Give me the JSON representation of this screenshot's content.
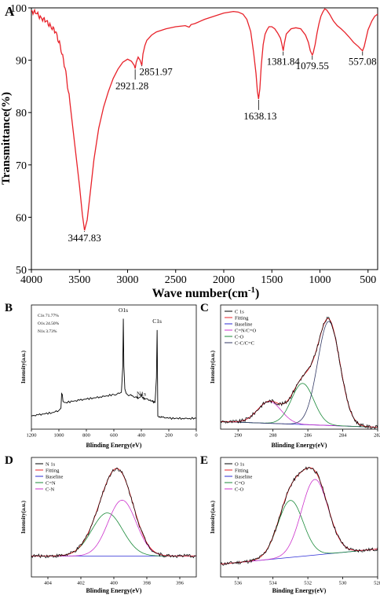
{
  "chart_data": [
    {
      "panel": "A",
      "type": "line",
      "xlabel": "Wave number(cm",
      "xlabel_sup": "-1",
      "xlabel_close": ")",
      "ylabel": "Transmittance(%)",
      "xlim": [
        4000,
        400
      ],
      "ylim": [
        50,
        100
      ],
      "x_reversed": true,
      "xticks": [
        4000,
        3500,
        3000,
        2500,
        2000,
        1500,
        1000,
        500
      ],
      "yticks": [
        50,
        60,
        70,
        80,
        90,
        100
      ],
      "series_color": "#e8222a",
      "series": [
        {
          "x": [
            4000,
            3950,
            3900,
            3850,
            3800,
            3750,
            3700,
            3650,
            3600,
            3550,
            3500,
            3470,
            3447.83,
            3420,
            3380,
            3350,
            3300,
            3250,
            3200,
            3150,
            3100,
            3050,
            3000,
            2960,
            2930,
            2921.28,
            2910,
            2890,
            2870,
            2851.97,
            2840,
            2820,
            2800,
            2750,
            2700,
            2600,
            2500,
            2400,
            2360,
            2340,
            2300,
            2200,
            2100,
            2000,
            1900,
            1850,
            1800,
            1760,
            1720,
            1690,
            1665,
            1650,
            1638.13,
            1625,
            1610,
            1590,
            1570,
            1550,
            1530,
            1500,
            1470,
            1440,
            1410,
            1395,
            1381.84,
            1370,
            1350,
            1300,
            1250,
            1200,
            1150,
            1120,
            1100,
            1085,
            1079.55,
            1070,
            1050,
            1030,
            1010,
            990,
            970,
            950,
            930,
            900,
            860,
            820,
            780,
            740,
            700,
            650,
            600,
            580,
            557.08,
            540,
            520,
            500,
            460,
            430,
            400
          ],
          "y": [
            99.5,
            98.9,
            98.2,
            97.4,
            96.6,
            95.4,
            92.8,
            88.5,
            82.0,
            74.0,
            66.0,
            60.5,
            57.5,
            59.5,
            66.0,
            71.0,
            77.0,
            81.0,
            84.0,
            86.5,
            88.3,
            89.6,
            90.2,
            89.8,
            89.0,
            88.4,
            89.6,
            90.6,
            90.0,
            89.0,
            91.2,
            92.8,
            93.8,
            94.8,
            95.4,
            96.0,
            96.4,
            96.6,
            96.3,
            96.8,
            97.0,
            97.8,
            98.4,
            99.0,
            99.3,
            99.2,
            98.8,
            97.8,
            95.5,
            91.5,
            87.5,
            84.0,
            82.6,
            84.5,
            89.0,
            93.0,
            95.0,
            95.8,
            96.4,
            96.4,
            96.0,
            95.2,
            94.2,
            93.0,
            91.8,
            93.2,
            95.0,
            96.0,
            96.2,
            96.0,
            94.8,
            93.4,
            91.8,
            91.2,
            91.0,
            91.4,
            93.0,
            95.2,
            97.0,
            98.4,
            99.2,
            99.8,
            99.6,
            98.8,
            97.5,
            96.6,
            96.0,
            95.3,
            94.5,
            93.4,
            92.6,
            92.2,
            91.8,
            92.6,
            94.2,
            95.8,
            97.5,
            98.4,
            98.8
          ]
        }
      ],
      "peak_labels": [
        {
          "text": "3447.83",
          "x": 3447.83,
          "y": 57.5
        },
        {
          "text": "2921.28",
          "x": 2921.28,
          "y": 88.4
        },
        {
          "text": "2851.97",
          "x": 2851.97,
          "y": 89.0
        },
        {
          "text": "1638.13",
          "x": 1638.13,
          "y": 82.6
        },
        {
          "text": "1381.84",
          "x": 1381.84,
          "y": 91.8
        },
        {
          "text": "1079.55",
          "x": 1079.55,
          "y": 91.0
        },
        {
          "text": "557.08",
          "x": 557.08,
          "y": 91.8
        }
      ]
    },
    {
      "panel": "B",
      "type": "line",
      "xlabel": "Blinding Energy(eV)",
      "ylabel": "Intensity(a.u.)",
      "xlim": [
        1200,
        0
      ],
      "ylim": [
        0,
        100
      ],
      "x_reversed": true,
      "xticks": [
        1200,
        1000,
        800,
        600,
        400,
        200,
        0
      ],
      "composition": [
        "C1s  71.77%",
        "O1s  24.50%",
        "N1s  3.73%"
      ],
      "peak_labels": [
        {
          "text": "O1s",
          "x": 531,
          "y": 96
        },
        {
          "text": "N1s",
          "x": 400,
          "y": 22
        },
        {
          "text": "C1s",
          "x": 285,
          "y": 86
        }
      ],
      "series": [
        {
          "x": [
            1200,
            1150,
            1100,
            1050,
            1000,
            985,
            980,
            975,
            970,
            960,
            950,
            900,
            850,
            800,
            750,
            700,
            650,
            600,
            560,
            545,
            535,
            531,
            527,
            520,
            510,
            500,
            470,
            440,
            420,
            405,
            400,
            395,
            390,
            370,
            340,
            320,
            300,
            290,
            285,
            282,
            280,
            270,
            250,
            200,
            150,
            100,
            50,
            0
          ],
          "y": [
            6,
            7,
            8,
            9,
            11,
            13,
            26,
            25,
            19,
            18,
            18,
            19,
            20,
            21,
            22,
            23,
            24,
            25,
            26,
            27,
            50,
            92,
            50,
            30,
            26,
            25,
            24,
            23,
            22,
            23,
            26,
            23,
            22,
            21,
            20,
            19,
            18,
            40,
            82,
            40,
            6,
            5,
            5,
            4,
            4,
            4,
            4,
            4
          ]
        }
      ]
    },
    {
      "panel": "C",
      "type": "line",
      "xlabel": "Blinding Energy(eV)",
      "ylabel": "Intensity(a.u.)",
      "xlim": [
        291,
        282
      ],
      "ylim": [
        0,
        100
      ],
      "x_reversed": true,
      "xticks": [
        290,
        288,
        286,
        284,
        282
      ],
      "legend_position": "top-left",
      "series": [
        {
          "name": "C 1s",
          "color": "#000000",
          "kind": "raw"
        },
        {
          "name": "Fitting",
          "color": "#e8222a",
          "kind": "fit"
        },
        {
          "name": "Baseline",
          "color": "#2b2bd6",
          "kind": "baseline"
        },
        {
          "name": "C=N/C=O",
          "color": "#cc33cc",
          "kind": "gauss",
          "center": 288.2,
          "fwhm": 1.6,
          "height": 18
        },
        {
          "name": "C-O",
          "color": "#1b8a3a",
          "kind": "gauss",
          "center": 286.3,
          "fwhm": 1.5,
          "height": 34
        },
        {
          "name": "C-C/C=C",
          "color": "#333a66",
          "kind": "gauss",
          "center": 284.8,
          "fwhm": 1.5,
          "height": 86
        }
      ],
      "baseline": {
        "x": [
          290.5,
          282.8
        ],
        "y": [
          6,
          2
        ]
      }
    },
    {
      "panel": "D",
      "type": "line",
      "xlabel": "Blinding Energy(eV)",
      "ylabel": "Intensity(a.u.)",
      "xlim": [
        405,
        395
      ],
      "ylim": [
        0,
        100
      ],
      "x_reversed": true,
      "xticks": [
        404,
        402,
        400,
        398,
        396
      ],
      "legend_position": "top-left",
      "series": [
        {
          "name": "N 1s",
          "color": "#000000",
          "kind": "raw"
        },
        {
          "name": "Fitting",
          "color": "#e8222a",
          "kind": "fit"
        },
        {
          "name": "Baseline",
          "color": "#2b2bd6",
          "kind": "baseline"
        },
        {
          "name": "C=N",
          "color": "#1b8a3a",
          "kind": "gauss",
          "center": 400.4,
          "fwhm": 2.2,
          "height": 37
        },
        {
          "name": "C-N",
          "color": "#cc33cc",
          "kind": "gauss",
          "center": 399.5,
          "fwhm": 2.0,
          "height": 48
        }
      ],
      "baseline": {
        "x": [
          405,
          395
        ],
        "y": [
          18,
          18
        ]
      }
    },
    {
      "panel": "E",
      "type": "line",
      "xlabel": "Binding Energy(eV)",
      "ylabel": "Intensity(a.u.)",
      "xlim": [
        537,
        528
      ],
      "ylim": [
        0,
        100
      ],
      "x_reversed": true,
      "xticks": [
        536,
        534,
        532,
        530,
        528
      ],
      "legend_position": "top-left",
      "series": [
        {
          "name": "O 1s",
          "color": "#000000",
          "kind": "raw"
        },
        {
          "name": "Fitting",
          "color": "#e8222a",
          "kind": "fit"
        },
        {
          "name": "Baseline",
          "color": "#2b2bd6",
          "kind": "baseline"
        },
        {
          "name": "C=O",
          "color": "#1b8a3a",
          "kind": "gauss",
          "center": 533.0,
          "fwhm": 1.7,
          "height": 49
        },
        {
          "name": "C-O",
          "color": "#cc33cc",
          "kind": "gauss",
          "center": 531.6,
          "fwhm": 1.8,
          "height": 65
        }
      ],
      "baseline": {
        "x": [
          537,
          528
        ],
        "y": [
          11,
          24
        ]
      }
    }
  ]
}
